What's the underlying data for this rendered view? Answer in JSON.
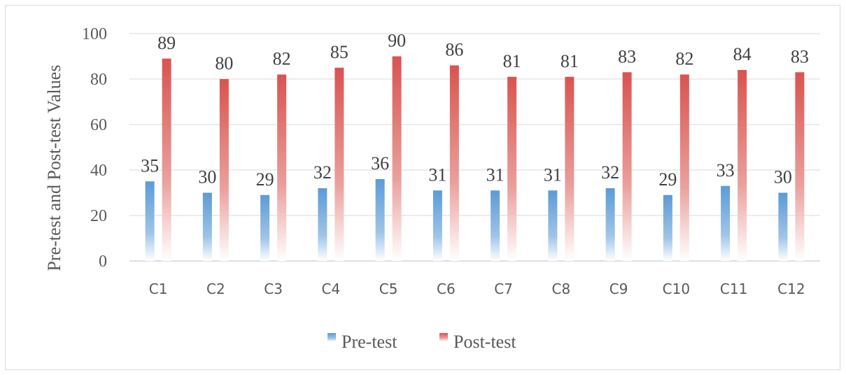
{
  "chart_data": {
    "type": "bar",
    "title": "",
    "xlabel": "",
    "ylabel": "Pre-test and Post-test Values",
    "categories": [
      "C1",
      "C2",
      "C3",
      "C4",
      "C5",
      "C6",
      "C7",
      "C8",
      "C9",
      "C10",
      "C11",
      "C12"
    ],
    "series": [
      {
        "name": "Pre-test",
        "values": [
          35,
          30,
          29,
          32,
          36,
          31,
          31,
          31,
          32,
          29,
          33,
          30
        ],
        "color": "#5b9bd5"
      },
      {
        "name": "Post-test",
        "values": [
          89,
          80,
          82,
          85,
          90,
          86,
          81,
          81,
          83,
          82,
          84,
          83
        ],
        "color": "#d9534f"
      }
    ],
    "ylim": [
      0,
      100
    ],
    "yticks": [
      0,
      20,
      40,
      60,
      80,
      100
    ],
    "grid": true,
    "legend": "bottom",
    "data_labels": true
  }
}
